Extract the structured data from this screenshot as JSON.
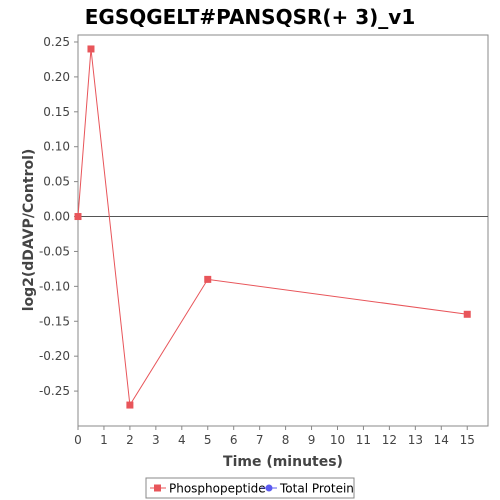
{
  "chart_data": {
    "type": "line",
    "title": "EGSQGELT#PANSQSR(+ 3)_v1",
    "xlabel": "Time (minutes)",
    "ylabel": "log2(dDAVP/Control)",
    "xlim": [
      0,
      15.8
    ],
    "ylim": [
      -0.3,
      0.26
    ],
    "x_ticks": [
      0,
      1,
      2,
      3,
      4,
      5,
      6,
      7,
      8,
      9,
      10,
      11,
      12,
      13,
      14,
      15
    ],
    "y_ticks": [
      0.25,
      0.2,
      0.15,
      0.1,
      0.05,
      0.0,
      -0.05,
      -0.1,
      -0.15,
      -0.2,
      -0.25
    ],
    "y_tick_labels": [
      "0.25",
      "0.20",
      "0.15",
      "0.10",
      "0.05",
      "0.00",
      "-0.05",
      "-0.10",
      "-0.15",
      "-0.20",
      "-0.25"
    ],
    "zero_line": true,
    "legend_position": "bottom-center",
    "series": [
      {
        "name": "Phosphopeptide",
        "color": "#e8555a",
        "marker": "square",
        "x": [
          0,
          0.5,
          2,
          5,
          15
        ],
        "y": [
          0.0,
          0.24,
          -0.27,
          -0.09,
          -0.14
        ]
      },
      {
        "name": "Total Protein",
        "color": "#5b5bf0",
        "marker": "circle",
        "x": [],
        "y": []
      }
    ]
  }
}
